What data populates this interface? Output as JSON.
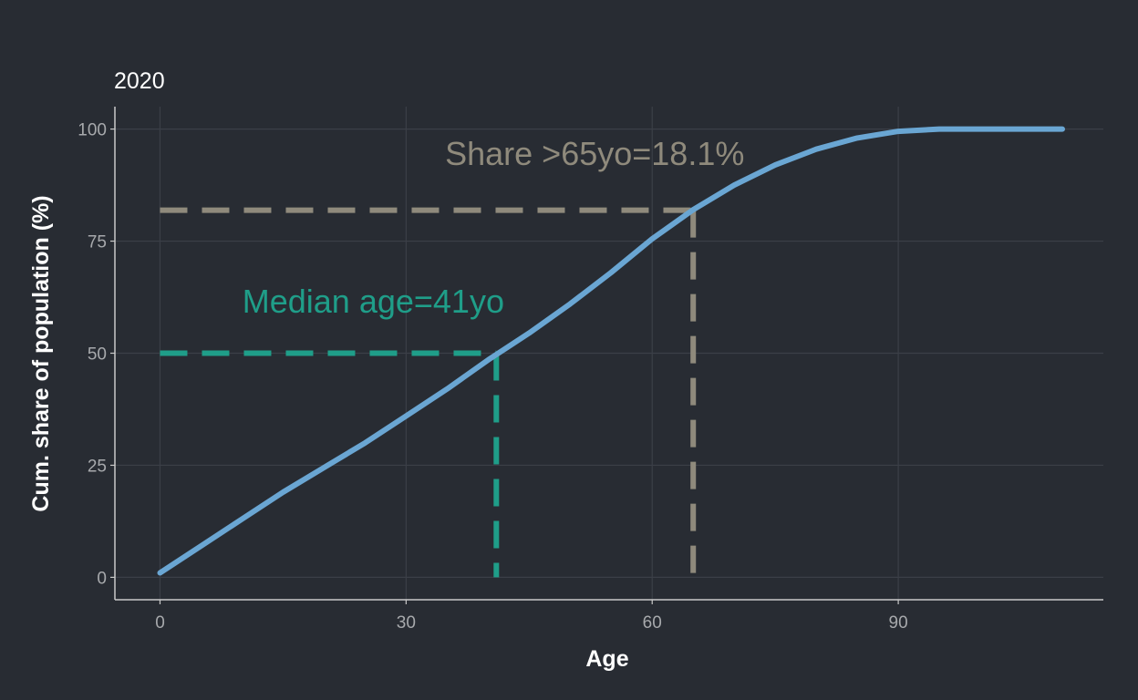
{
  "chart_data": {
    "type": "line",
    "title": "2020",
    "xlabel": "Age",
    "ylabel": "Cum. share of population (%)",
    "xlim": [
      -5.5,
      115
    ],
    "ylim": [
      -5,
      105
    ],
    "x_ticks": [
      0,
      30,
      60,
      90
    ],
    "y_ticks": [
      0,
      25,
      50,
      75,
      100
    ],
    "x_tick_labels": [
      "0",
      "30",
      "60",
      "90"
    ],
    "y_tick_labels": [
      "0",
      "25",
      "50",
      "75",
      "100"
    ],
    "grid": true,
    "legend": "none",
    "series": [
      {
        "color": "#6aa6d3",
        "x": [
          0,
          5,
          10,
          15,
          20,
          25,
          30,
          35,
          40,
          45,
          50,
          55,
          60,
          65,
          70,
          75,
          80,
          85,
          90,
          95,
          100,
          105,
          110
        ],
        "y": [
          1,
          7,
          13,
          19,
          24.5,
          30,
          36,
          42,
          48.5,
          54.5,
          61,
          68,
          75.5,
          82,
          87.5,
          92,
          95.5,
          98,
          99.5,
          100,
          100,
          100,
          100
        ]
      }
    ],
    "annotations": [
      {
        "label": "Median age=41yo",
        "x": 41,
        "y": 50,
        "color": "#1f9e89",
        "text_x": 26,
        "text_y": 59
      },
      {
        "label": "Share >65yo=18.1%",
        "x": 65,
        "y": 81.9,
        "color": "#8f8a7c",
        "text_x": 53,
        "text_y": 92
      }
    ]
  }
}
